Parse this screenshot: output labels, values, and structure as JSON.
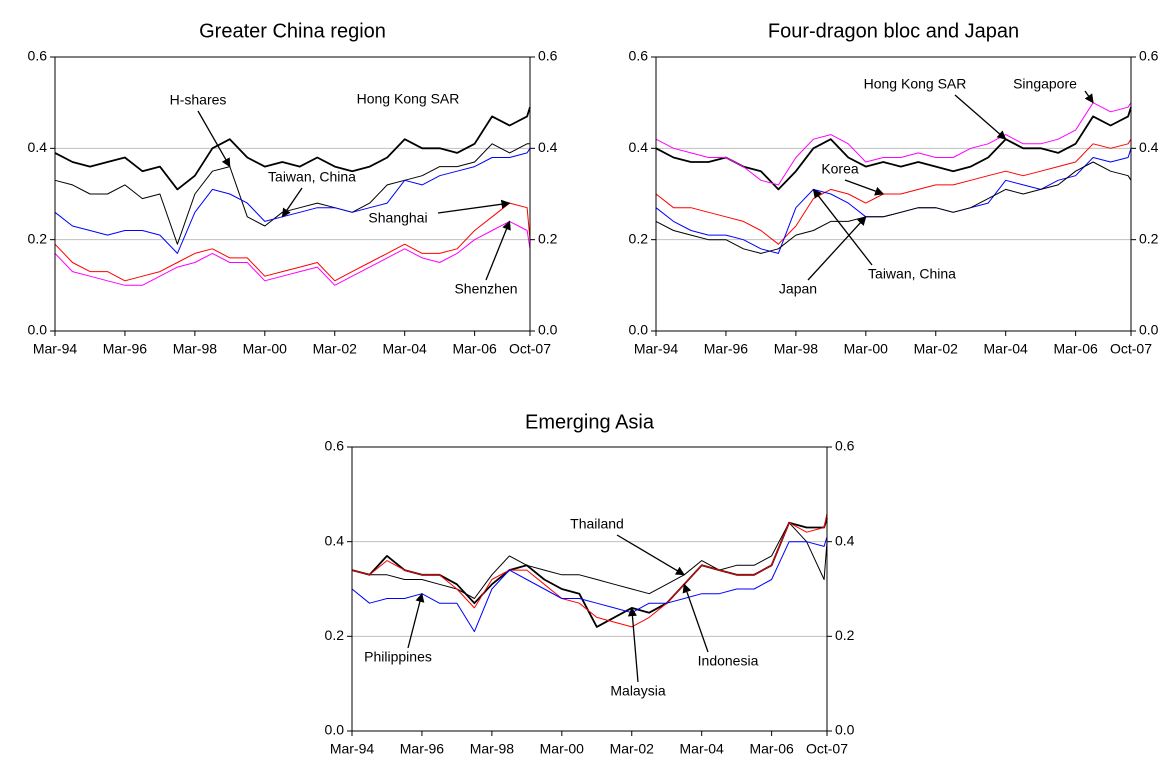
{
  "chart_data": [
    {
      "type": "line",
      "title": "Greater China region",
      "x": [
        "Mar-94",
        "Sep-94",
        "Mar-95",
        "Sep-95",
        "Mar-96",
        "Sep-96",
        "Mar-97",
        "Sep-97",
        "Mar-98",
        "Sep-98",
        "Mar-99",
        "Sep-99",
        "Mar-00",
        "Sep-00",
        "Mar-01",
        "Sep-01",
        "Mar-02",
        "Sep-02",
        "Mar-03",
        "Sep-03",
        "Mar-04",
        "Sep-04",
        "Mar-05",
        "Sep-05",
        "Mar-06",
        "Sep-06",
        "Mar-07",
        "Sep-07",
        "Oct-07"
      ],
      "xlim": [
        "Mar-94",
        "Oct-07"
      ],
      "xticks": [
        "Mar-94",
        "Mar-96",
        "Mar-98",
        "Mar-00",
        "Mar-02",
        "Mar-04",
        "Mar-06",
        "Oct-07"
      ],
      "ylim": [
        0,
        0.6
      ],
      "yticks": [
        {
          "value": 0,
          "label": "0.0"
        },
        0.2,
        0.4,
        0.6
      ],
      "y2lim": [
        0,
        0.6
      ],
      "y2ticks": [
        {
          "value": 0,
          "label": "0.0"
        },
        0.2,
        0.4,
        0.6
      ],
      "grid": true,
      "series": [
        {
          "name": "Hong Kong SAR",
          "color": "#000000",
          "values": [
            0.39,
            0.37,
            0.36,
            0.37,
            0.38,
            0.35,
            0.36,
            0.31,
            0.34,
            0.4,
            0.42,
            0.38,
            0.36,
            0.37,
            0.36,
            0.38,
            0.36,
            0.35,
            0.36,
            0.38,
            0.42,
            0.4,
            0.4,
            0.39,
            0.41,
            0.47,
            0.45,
            0.47,
            0.49
          ]
        },
        {
          "name": "H-shares",
          "color": "#000000",
          "values": [
            0.33,
            0.32,
            0.3,
            0.3,
            0.32,
            0.29,
            0.3,
            0.19,
            0.3,
            0.35,
            0.36,
            0.25,
            0.23,
            0.26,
            0.27,
            0.28,
            0.27,
            0.26,
            0.28,
            0.32,
            0.33,
            0.34,
            0.36,
            0.36,
            0.37,
            0.41,
            0.39,
            0.41,
            0.41
          ]
        },
        {
          "name": "Taiwan, China",
          "color": "#0000ff",
          "values": [
            0.26,
            0.23,
            0.22,
            0.21,
            0.22,
            0.22,
            0.21,
            0.17,
            0.26,
            0.31,
            0.3,
            0.28,
            0.24,
            0.25,
            0.26,
            0.27,
            0.27,
            0.26,
            0.27,
            0.28,
            0.33,
            0.32,
            0.34,
            0.35,
            0.36,
            0.38,
            0.38,
            0.39,
            0.4
          ]
        },
        {
          "name": "Shanghai",
          "color": "#ff0000",
          "values": [
            0.19,
            0.15,
            0.13,
            0.13,
            0.11,
            0.12,
            0.13,
            0.15,
            0.17,
            0.18,
            0.16,
            0.16,
            0.12,
            0.13,
            0.14,
            0.15,
            0.11,
            0.13,
            0.15,
            0.17,
            0.19,
            0.17,
            0.17,
            0.18,
            0.22,
            0.25,
            0.28,
            0.27,
            0.2
          ]
        },
        {
          "name": "Shenzhen",
          "color": "#ff00ff",
          "values": [
            0.17,
            0.13,
            0.12,
            0.11,
            0.1,
            0.1,
            0.12,
            0.14,
            0.15,
            0.17,
            0.15,
            0.15,
            0.11,
            0.12,
            0.13,
            0.14,
            0.1,
            0.12,
            0.14,
            0.16,
            0.18,
            0.16,
            0.15,
            0.17,
            0.2,
            0.22,
            0.24,
            0.22,
            0.18
          ]
        }
      ]
    },
    {
      "type": "line",
      "title": "Four-dragon bloc and Japan",
      "x": [
        "Mar-94",
        "Sep-94",
        "Mar-95",
        "Sep-95",
        "Mar-96",
        "Sep-96",
        "Mar-97",
        "Sep-97",
        "Mar-98",
        "Sep-98",
        "Mar-99",
        "Sep-99",
        "Mar-00",
        "Sep-00",
        "Mar-01",
        "Sep-01",
        "Mar-02",
        "Sep-02",
        "Mar-03",
        "Sep-03",
        "Mar-04",
        "Sep-04",
        "Mar-05",
        "Sep-05",
        "Mar-06",
        "Sep-06",
        "Mar-07",
        "Sep-07",
        "Oct-07"
      ],
      "xlim": [
        "Mar-94",
        "Oct-07"
      ],
      "xticks": [
        "Mar-94",
        "Mar-96",
        "Mar-98",
        "Mar-00",
        "Mar-02",
        "Mar-04",
        "Mar-06",
        "Oct-07"
      ],
      "ylim": [
        0,
        0.6
      ],
      "yticks": [
        {
          "value": 0,
          "label": "0.0"
        },
        0.2,
        0.4,
        0.6
      ],
      "y2lim": [
        0,
        0.6
      ],
      "y2ticks": [
        {
          "value": 0,
          "label": "0.0"
        },
        0.2,
        0.4,
        0.6
      ],
      "grid": true,
      "series": [
        {
          "name": "Hong Kong SAR",
          "color": "#000000",
          "values": [
            0.4,
            0.38,
            0.37,
            0.37,
            0.38,
            0.36,
            0.35,
            0.31,
            0.35,
            0.4,
            0.42,
            0.38,
            0.36,
            0.37,
            0.36,
            0.37,
            0.36,
            0.35,
            0.36,
            0.38,
            0.42,
            0.4,
            0.4,
            0.39,
            0.41,
            0.47,
            0.45,
            0.47,
            0.49
          ]
        },
        {
          "name": "Singapore",
          "color": "#ff00ff",
          "values": [
            0.42,
            0.4,
            0.39,
            0.38,
            0.38,
            0.36,
            0.33,
            0.32,
            0.38,
            0.42,
            0.43,
            0.41,
            0.37,
            0.38,
            0.38,
            0.39,
            0.38,
            0.38,
            0.4,
            0.41,
            0.43,
            0.41,
            0.41,
            0.42,
            0.44,
            0.5,
            0.48,
            0.49,
            0.5
          ]
        },
        {
          "name": "Korea",
          "color": "#ff0000",
          "values": [
            0.3,
            0.27,
            0.27,
            0.26,
            0.25,
            0.24,
            0.22,
            0.19,
            0.23,
            0.29,
            0.31,
            0.3,
            0.28,
            0.3,
            0.3,
            0.31,
            0.32,
            0.32,
            0.33,
            0.34,
            0.35,
            0.34,
            0.35,
            0.36,
            0.37,
            0.41,
            0.4,
            0.41,
            0.42
          ]
        },
        {
          "name": "Taiwan, China",
          "color": "#0000ff",
          "values": [
            0.27,
            0.24,
            0.22,
            0.21,
            0.21,
            0.2,
            0.18,
            0.17,
            0.27,
            0.31,
            0.3,
            0.28,
            0.25,
            0.25,
            0.26,
            0.27,
            0.27,
            0.26,
            0.27,
            0.28,
            0.33,
            0.32,
            0.31,
            0.33,
            0.34,
            0.38,
            0.37,
            0.38,
            0.4
          ]
        },
        {
          "name": "Japan",
          "color": "#000000",
          "values": [
            0.24,
            0.22,
            0.21,
            0.2,
            0.2,
            0.18,
            0.17,
            0.18,
            0.21,
            0.22,
            0.24,
            0.24,
            0.25,
            0.25,
            0.26,
            0.27,
            0.27,
            0.26,
            0.27,
            0.29,
            0.31,
            0.3,
            0.31,
            0.32,
            0.35,
            0.37,
            0.35,
            0.34,
            0.33
          ]
        }
      ]
    },
    {
      "type": "line",
      "title": "Emerging Asia",
      "x": [
        "Mar-94",
        "Sep-94",
        "Mar-95",
        "Sep-95",
        "Mar-96",
        "Sep-96",
        "Mar-97",
        "Sep-97",
        "Mar-98",
        "Sep-98",
        "Mar-99",
        "Sep-99",
        "Mar-00",
        "Sep-00",
        "Mar-01",
        "Sep-01",
        "Mar-02",
        "Sep-02",
        "Mar-03",
        "Sep-03",
        "Mar-04",
        "Sep-04",
        "Mar-05",
        "Sep-05",
        "Mar-06",
        "Sep-06",
        "Mar-07",
        "Sep-07",
        "Oct-07"
      ],
      "xlim": [
        "Mar-94",
        "Oct-07"
      ],
      "xticks": [
        "Mar-94",
        "Mar-96",
        "Mar-98",
        "Mar-00",
        "Mar-02",
        "Mar-04",
        "Mar-06",
        "Oct-07"
      ],
      "ylim": [
        0,
        0.6
      ],
      "yticks": [
        {
          "value": 0,
          "label": "0.0"
        },
        0.2,
        0.4,
        0.6
      ],
      "y2lim": [
        0,
        0.6
      ],
      "y2ticks": [
        {
          "value": 0,
          "label": "0.0"
        },
        0.2,
        0.4,
        0.6
      ],
      "grid": true,
      "series": [
        {
          "name": "Thailand",
          "color": "#000000",
          "values": [
            0.34,
            0.33,
            0.33,
            0.32,
            0.32,
            0.31,
            0.3,
            0.28,
            0.33,
            0.37,
            0.35,
            0.34,
            0.33,
            0.33,
            0.32,
            0.31,
            0.3,
            0.29,
            0.31,
            0.33,
            0.36,
            0.34,
            0.35,
            0.35,
            0.37,
            0.44,
            0.4,
            0.32,
            0.4
          ]
        },
        {
          "name": "Malaysia",
          "color": "#000000",
          "values": [
            0.34,
            0.33,
            0.37,
            0.34,
            0.33,
            0.33,
            0.31,
            0.27,
            0.31,
            0.34,
            0.35,
            0.32,
            0.3,
            0.29,
            0.22,
            0.24,
            0.26,
            0.25,
            0.27,
            0.31,
            0.35,
            0.34,
            0.33,
            0.33,
            0.35,
            0.44,
            0.43,
            0.43,
            0.45
          ]
        },
        {
          "name": "Indonesia",
          "color": "#ff0000",
          "values": [
            0.34,
            0.33,
            0.36,
            0.34,
            0.33,
            0.33,
            0.3,
            0.26,
            0.32,
            0.34,
            0.34,
            0.31,
            0.28,
            0.27,
            0.24,
            0.23,
            0.22,
            0.24,
            0.27,
            0.31,
            0.35,
            0.34,
            0.33,
            0.33,
            0.35,
            0.44,
            0.42,
            0.43,
            0.46
          ]
        },
        {
          "name": "Philippines",
          "color": "#0000ff",
          "values": [
            0.3,
            0.27,
            0.28,
            0.28,
            0.29,
            0.27,
            0.27,
            0.21,
            0.3,
            0.34,
            0.32,
            0.3,
            0.28,
            0.28,
            0.27,
            0.26,
            0.25,
            0.27,
            0.27,
            0.28,
            0.29,
            0.29,
            0.3,
            0.3,
            0.32,
            0.4,
            0.4,
            0.39,
            0.41
          ]
        }
      ]
    }
  ]
}
